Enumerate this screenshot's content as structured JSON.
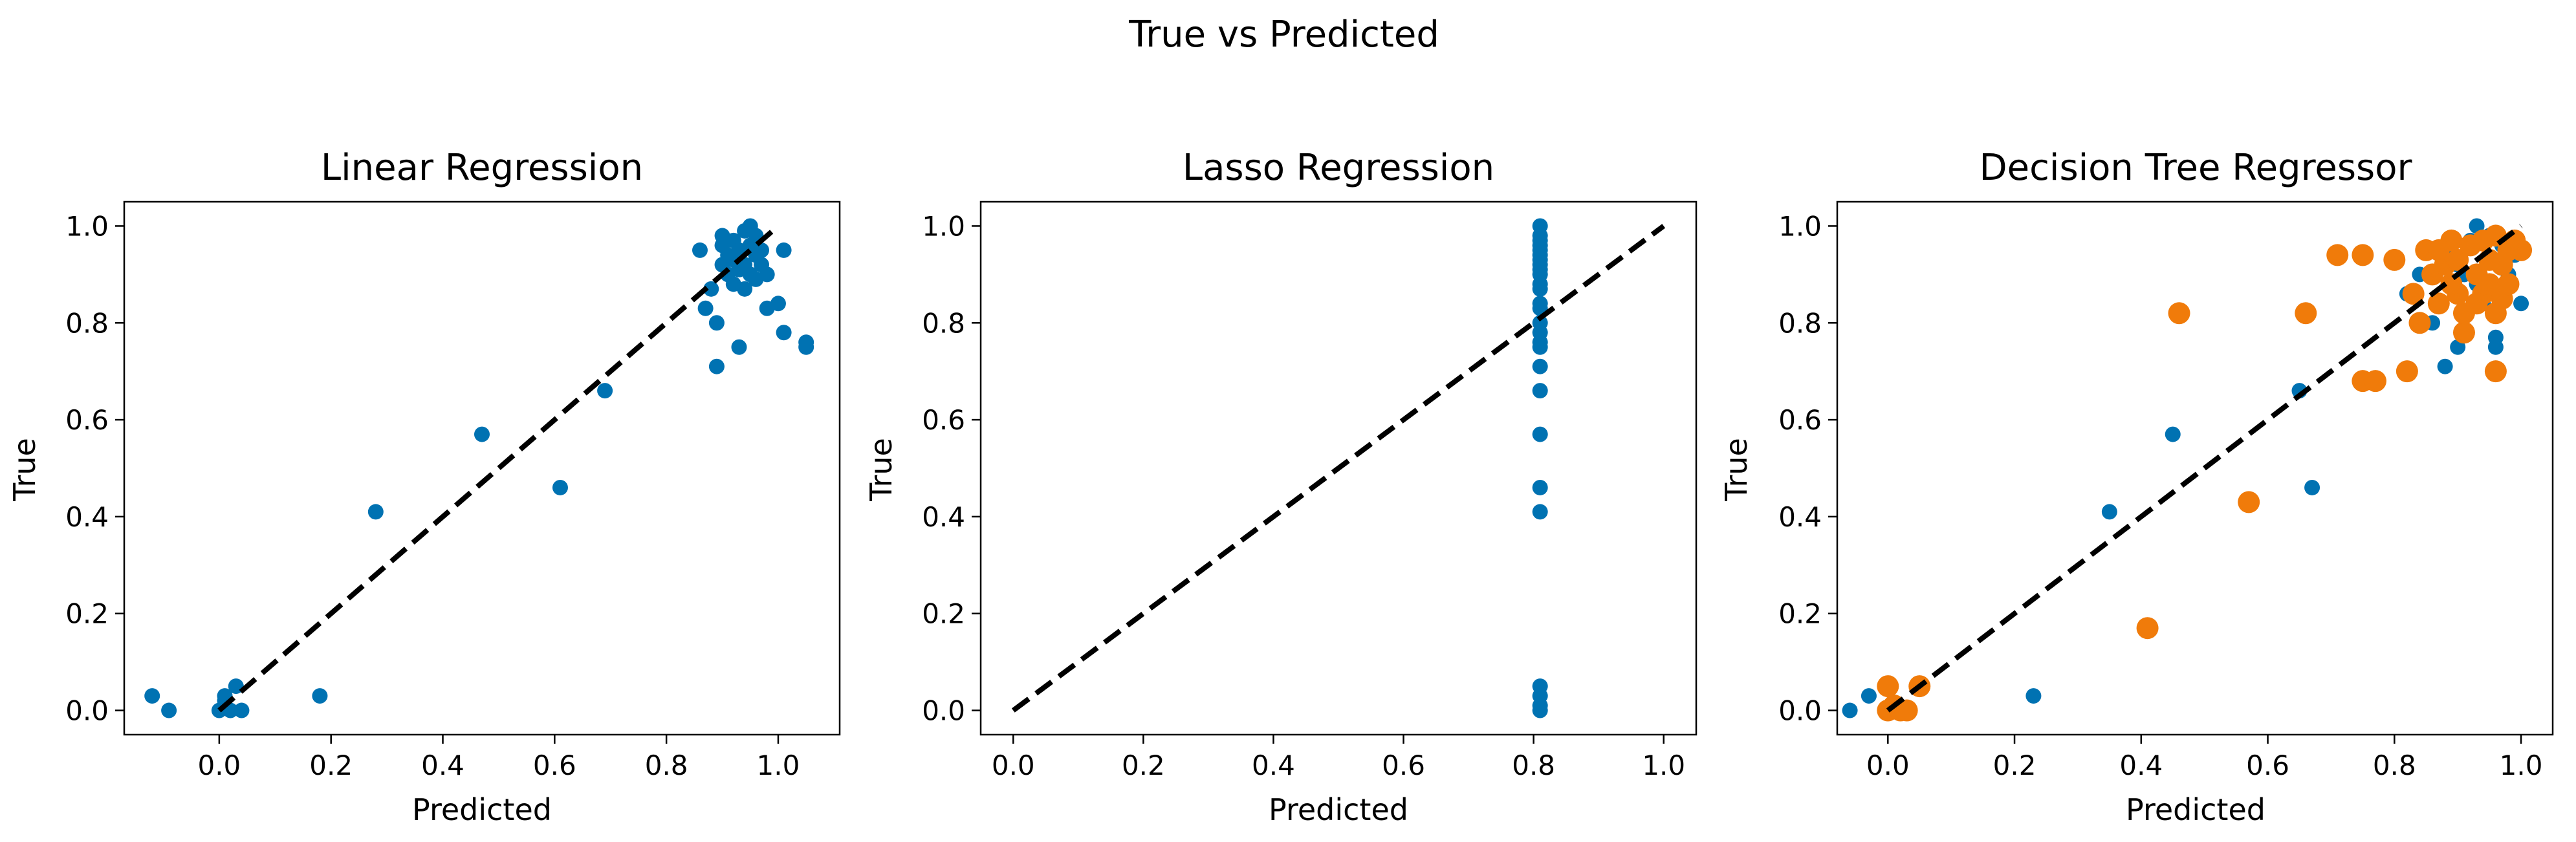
{
  "figure": {
    "suptitle": "True vs Predicted"
  },
  "chart_data": [
    {
      "type": "scatter",
      "title": "Linear Regression",
      "xlabel": "Predicted",
      "ylabel": "True",
      "xlim": [
        -0.17,
        1.11
      ],
      "ylim": [
        -0.05,
        1.05
      ],
      "xticks": [
        0.0,
        0.2,
        0.4,
        0.6,
        0.8,
        1.0
      ],
      "yticks": [
        0.0,
        0.2,
        0.4,
        0.6,
        0.8,
        1.0
      ],
      "reference_line": {
        "x": [
          0,
          1
        ],
        "y": [
          0,
          1
        ],
        "style": "dashed",
        "color": "#000000"
      },
      "series": [
        {
          "color": "#0072B2",
          "points": [
            [
              -0.12,
              0.03
            ],
            [
              -0.09,
              0.0
            ],
            [
              0.0,
              0.0
            ],
            [
              0.01,
              0.02
            ],
            [
              0.01,
              0.03
            ],
            [
              0.02,
              0.0
            ],
            [
              0.03,
              0.05
            ],
            [
              0.04,
              0.0
            ],
            [
              0.18,
              0.03
            ],
            [
              0.28,
              0.41
            ],
            [
              0.47,
              0.57
            ],
            [
              0.61,
              0.46
            ],
            [
              0.69,
              0.66
            ],
            [
              0.86,
              0.95
            ],
            [
              0.87,
              0.83
            ],
            [
              0.88,
              0.87
            ],
            [
              0.89,
              0.8
            ],
            [
              0.89,
              0.71
            ],
            [
              0.9,
              0.96
            ],
            [
              0.9,
              0.92
            ],
            [
              0.91,
              0.9
            ],
            [
              0.91,
              0.94
            ],
            [
              0.92,
              0.88
            ],
            [
              0.92,
              0.97
            ],
            [
              0.92,
              0.93
            ],
            [
              0.93,
              0.91
            ],
            [
              0.93,
              0.95
            ],
            [
              0.93,
              0.75
            ],
            [
              0.94,
              0.99
            ],
            [
              0.94,
              0.87
            ],
            [
              0.94,
              0.92
            ],
            [
              0.95,
              0.96
            ],
            [
              0.95,
              0.9
            ],
            [
              0.96,
              0.94
            ],
            [
              0.96,
              0.89
            ],
            [
              0.96,
              0.98
            ],
            [
              0.97,
              0.92
            ],
            [
              0.97,
              0.95
            ],
            [
              0.98,
              0.83
            ],
            [
              0.98,
              0.9
            ],
            [
              1.0,
              0.84
            ],
            [
              1.01,
              0.95
            ],
            [
              1.01,
              0.78
            ],
            [
              1.05,
              0.76
            ],
            [
              1.05,
              0.75
            ],
            [
              0.9,
              0.98
            ],
            [
              0.95,
              1.0
            ]
          ]
        }
      ]
    },
    {
      "type": "scatter",
      "title": "Lasso Regression",
      "xlabel": "Predicted",
      "ylabel": "True",
      "xlim": [
        -0.05,
        1.05
      ],
      "ylim": [
        -0.05,
        1.05
      ],
      "xticks": [
        0.0,
        0.2,
        0.4,
        0.6,
        0.8,
        1.0
      ],
      "yticks": [
        0.0,
        0.2,
        0.4,
        0.6,
        0.8,
        1.0
      ],
      "reference_line": {
        "x": [
          0,
          1
        ],
        "y": [
          0,
          1
        ],
        "style": "dashed",
        "color": "#000000"
      },
      "series": [
        {
          "color": "#0072B2",
          "points": [
            [
              0.81,
              0.0
            ],
            [
              0.81,
              0.01
            ],
            [
              0.81,
              0.03
            ],
            [
              0.81,
              0.05
            ],
            [
              0.81,
              0.41
            ],
            [
              0.81,
              0.46
            ],
            [
              0.81,
              0.57
            ],
            [
              0.81,
              0.66
            ],
            [
              0.81,
              0.71
            ],
            [
              0.81,
              0.75
            ],
            [
              0.81,
              0.76
            ],
            [
              0.81,
              0.78
            ],
            [
              0.81,
              0.8
            ],
            [
              0.81,
              0.83
            ],
            [
              0.81,
              0.84
            ],
            [
              0.81,
              0.87
            ],
            [
              0.81,
              0.88
            ],
            [
              0.81,
              0.9
            ],
            [
              0.81,
              0.91
            ],
            [
              0.81,
              0.92
            ],
            [
              0.81,
              0.93
            ],
            [
              0.81,
              0.94
            ],
            [
              0.81,
              0.95
            ],
            [
              0.81,
              0.96
            ],
            [
              0.81,
              0.97
            ],
            [
              0.81,
              0.98
            ],
            [
              0.81,
              1.0
            ]
          ]
        }
      ]
    },
    {
      "type": "scatter",
      "title": "Decision Tree Regressor",
      "xlabel": "Predicted",
      "ylabel": "True",
      "xlim": [
        -0.08,
        1.05
      ],
      "ylim": [
        -0.05,
        1.05
      ],
      "xticks": [
        0.0,
        0.2,
        0.4,
        0.6,
        0.8,
        1.0
      ],
      "yticks": [
        0.0,
        0.2,
        0.4,
        0.6,
        0.8,
        1.0
      ],
      "reference_line": {
        "x": [
          0,
          1
        ],
        "y": [
          0,
          1
        ],
        "style": "dashed",
        "color": "#000000"
      },
      "series": [
        {
          "color": "#0072B2",
          "size": "small",
          "points": [
            [
              -0.06,
              0.0
            ],
            [
              -0.03,
              0.03
            ],
            [
              0.0,
              0.0
            ],
            [
              0.01,
              0.01
            ],
            [
              0.02,
              0.0
            ],
            [
              0.23,
              0.03
            ],
            [
              0.35,
              0.41
            ],
            [
              0.45,
              0.57
            ],
            [
              0.65,
              0.66
            ],
            [
              0.67,
              0.46
            ],
            [
              0.82,
              0.86
            ],
            [
              0.84,
              0.9
            ],
            [
              0.86,
              0.8
            ],
            [
              0.88,
              0.71
            ],
            [
              0.88,
              0.95
            ],
            [
              0.9,
              0.75
            ],
            [
              0.9,
              0.92
            ],
            [
              0.92,
              0.97
            ],
            [
              0.93,
              0.88
            ],
            [
              0.93,
              1.0
            ],
            [
              0.94,
              0.84
            ],
            [
              0.95,
              0.93
            ],
            [
              0.96,
              0.77
            ],
            [
              0.96,
              0.75
            ],
            [
              0.97,
              0.96
            ],
            [
              0.98,
              0.9
            ],
            [
              0.99,
              0.94
            ],
            [
              1.0,
              0.84
            ],
            [
              0.91,
              0.9
            ],
            [
              0.95,
              0.98
            ]
          ]
        },
        {
          "color": "#F07B0A",
          "size": "large",
          "points": [
            [
              0.0,
              0.0
            ],
            [
              0.0,
              0.05
            ],
            [
              0.01,
              0.01
            ],
            [
              0.02,
              0.0
            ],
            [
              0.03,
              0.0
            ],
            [
              0.05,
              0.05
            ],
            [
              0.41,
              0.17
            ],
            [
              0.46,
              0.82
            ],
            [
              0.57,
              0.43
            ],
            [
              0.66,
              0.82
            ],
            [
              0.71,
              0.94
            ],
            [
              0.75,
              0.94
            ],
            [
              0.75,
              0.68
            ],
            [
              0.77,
              0.68
            ],
            [
              0.8,
              0.93
            ],
            [
              0.82,
              0.7
            ],
            [
              0.83,
              0.86
            ],
            [
              0.84,
              0.8
            ],
            [
              0.85,
              0.95
            ],
            [
              0.86,
              0.9
            ],
            [
              0.87,
              0.84
            ],
            [
              0.88,
              0.92
            ],
            [
              0.89,
              0.97
            ],
            [
              0.9,
              0.86
            ],
            [
              0.9,
              0.93
            ],
            [
              0.91,
              0.78
            ],
            [
              0.91,
              0.82
            ],
            [
              0.92,
              0.96
            ],
            [
              0.93,
              0.9
            ],
            [
              0.94,
              0.86
            ],
            [
              0.94,
              0.97
            ],
            [
              0.95,
              0.93
            ],
            [
              0.95,
              0.88
            ],
            [
              0.96,
              0.7
            ],
            [
              0.96,
              0.98
            ],
            [
              0.97,
              0.85
            ],
            [
              0.97,
              0.92
            ],
            [
              0.98,
              0.95
            ],
            [
              0.98,
              0.88
            ],
            [
              0.99,
              0.97
            ],
            [
              1.0,
              0.95
            ],
            [
              0.89,
              0.88
            ],
            [
              0.93,
              0.84
            ],
            [
              0.87,
              0.95
            ],
            [
              0.96,
              0.82
            ]
          ]
        }
      ]
    }
  ]
}
